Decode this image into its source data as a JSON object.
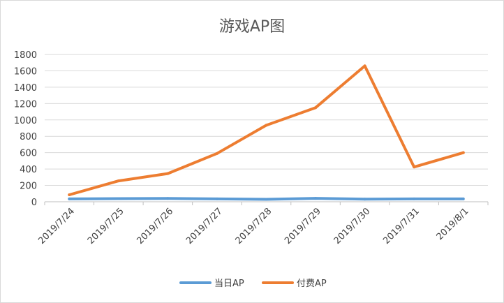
{
  "chart_data": {
    "type": "line",
    "title": "游戏AP图",
    "categories": [
      "2019/7/24",
      "2019/7/25",
      "2019/7/26",
      "2019/7/27",
      "2019/7/28",
      "2019/7/29",
      "2019/7/30",
      "2019/7/31",
      "2019/8/1"
    ],
    "ylim": [
      0,
      1800
    ],
    "yticks": [
      0,
      200,
      400,
      600,
      800,
      1000,
      1200,
      1400,
      1600,
      1800
    ],
    "grid": true,
    "legend_position": "bottom",
    "series": [
      {
        "name": "当日AP",
        "color": "#5b9bd5",
        "values": [
          35,
          38,
          40,
          35,
          30,
          42,
          32,
          35,
          35
        ]
      },
      {
        "name": "付费AP",
        "color": "#ed7d31",
        "values": [
          85,
          255,
          345,
          590,
          935,
          1150,
          1660,
          425,
          600
        ]
      }
    ]
  }
}
